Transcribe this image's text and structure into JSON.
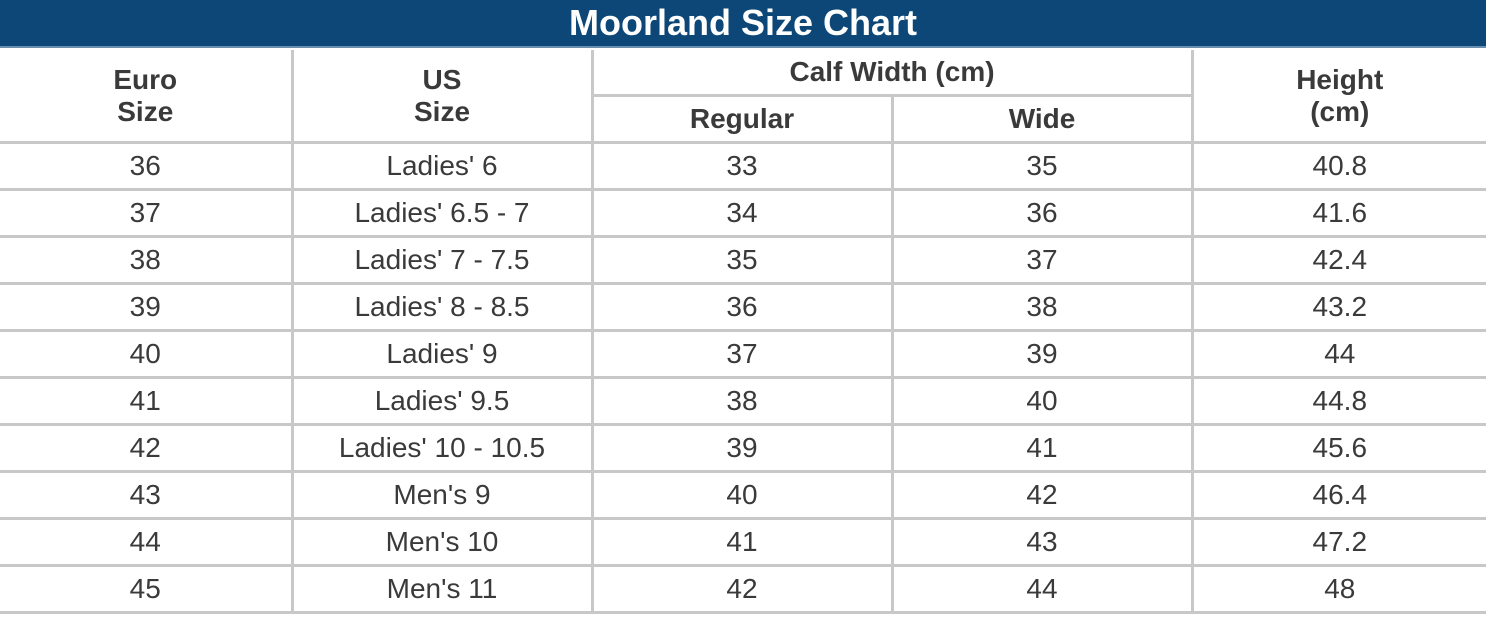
{
  "title": "Moorland Size Chart",
  "headers": {
    "euro_line1": "Euro",
    "euro_line2": "Size",
    "us_line1": "US",
    "us_line2": "Size",
    "calf_width": "Calf Width (cm)",
    "regular": "Regular",
    "wide": "Wide",
    "height_line1": "Height",
    "height_line2": "(cm)"
  },
  "rows": [
    {
      "euro": "36",
      "us": "Ladies' 6",
      "regular": "33",
      "wide": "35",
      "height": "40.8"
    },
    {
      "euro": "37",
      "us": "Ladies' 6.5 - 7",
      "regular": "34",
      "wide": "36",
      "height": "41.6"
    },
    {
      "euro": "38",
      "us": "Ladies' 7 - 7.5",
      "regular": "35",
      "wide": "37",
      "height": "42.4"
    },
    {
      "euro": "39",
      "us": "Ladies' 8 - 8.5",
      "regular": "36",
      "wide": "38",
      "height": "43.2"
    },
    {
      "euro": "40",
      "us": "Ladies' 9",
      "regular": "37",
      "wide": "39",
      "height": "44"
    },
    {
      "euro": "41",
      "us": "Ladies' 9.5",
      "regular": "38",
      "wide": "40",
      "height": "44.8"
    },
    {
      "euro": "42",
      "us": "Ladies' 10 - 10.5",
      "regular": "39",
      "wide": "41",
      "height": "45.6"
    },
    {
      "euro": "43",
      "us": "Men's 9",
      "regular": "40",
      "wide": "42",
      "height": "46.4"
    },
    {
      "euro": "44",
      "us": "Men's 10",
      "regular": "41",
      "wide": "43",
      "height": "47.2"
    },
    {
      "euro": "45",
      "us": "Men's 11",
      "regular": "42",
      "wide": "44",
      "height": "48"
    }
  ],
  "colors": {
    "title_bg": "#0c4778",
    "title_text": "#ffffff",
    "grid": "#c8c8c8",
    "text": "#3a3a3a"
  }
}
